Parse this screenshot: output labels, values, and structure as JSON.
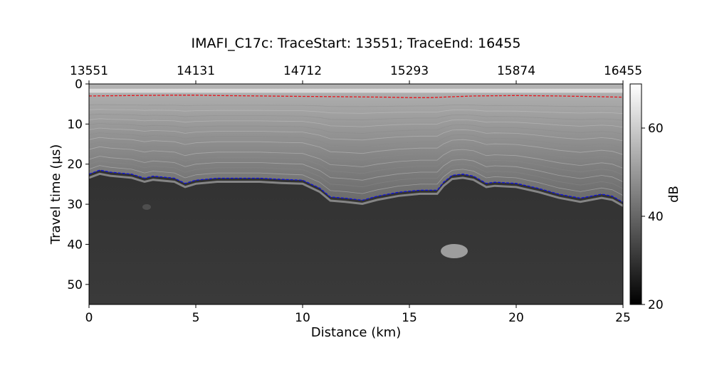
{
  "chart_data": {
    "type": "heatmap",
    "title": "IMAFI_C17c: TraceStart: 13551; TraceEnd: 16455",
    "xlabel": "Distance (km)",
    "ylabel": "Travel time (µs)",
    "xlim": [
      0,
      25
    ],
    "ylim": [
      55,
      0
    ],
    "x_ticks": [
      0,
      5,
      10,
      15,
      20,
      25
    ],
    "y_ticks": [
      0,
      10,
      20,
      30,
      40,
      50
    ],
    "top_axis": {
      "ticks": [
        0,
        5,
        10,
        15,
        20,
        25
      ],
      "labels": [
        "13551",
        "14131",
        "14712",
        "15293",
        "15874",
        "16455"
      ]
    },
    "colorbar": {
      "label": "dB",
      "range": [
        20,
        70
      ],
      "ticks": [
        20,
        40,
        60
      ],
      "colormap": "gray"
    },
    "series": [
      {
        "color": "#e8141c",
        "style": "dashed",
        "x": [
          0,
          2,
          4,
          5,
          6,
          8,
          10,
          12,
          14,
          15,
          16,
          17,
          18,
          20,
          22,
          24,
          25
        ],
        "y": [
          3.0,
          2.9,
          2.8,
          2.8,
          2.9,
          3.0,
          3.1,
          3.2,
          3.3,
          3.4,
          3.4,
          3.2,
          3.0,
          2.9,
          3.0,
          3.2,
          3.3
        ]
      },
      {
        "color": "#0d10e0",
        "style": "dashed",
        "x": [
          0,
          0.5,
          1,
          2,
          2.6,
          3,
          4,
          4.5,
          5,
          6,
          7,
          8,
          9,
          10,
          10.8,
          11.3,
          12,
          12.8,
          13.5,
          14.5,
          15.5,
          16.3,
          16.6,
          17,
          17.5,
          18,
          18.6,
          19,
          20,
          21,
          22,
          23,
          24,
          24.5,
          25
        ],
        "y": [
          22.5,
          21.5,
          22,
          22.5,
          23.5,
          23,
          23.5,
          24.8,
          24,
          23.5,
          23.5,
          23.5,
          23.8,
          24,
          26,
          28.2,
          28.5,
          29,
          28,
          27,
          26.5,
          26.5,
          24.5,
          22.8,
          22.5,
          23,
          24.8,
          24.5,
          24.8,
          26,
          27.5,
          28.5,
          27.5,
          28,
          29.5
        ]
      }
    ]
  }
}
